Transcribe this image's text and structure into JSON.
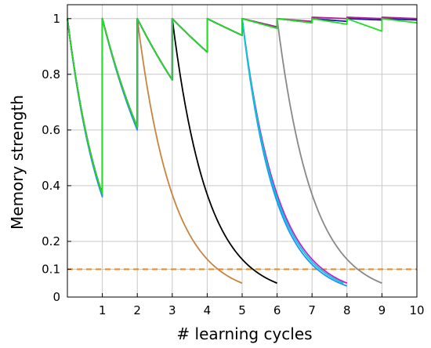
{
  "chart_data": {
    "type": "line",
    "xlabel": "# learning cycles",
    "ylabel": "Memory strength",
    "xlim": [
      0,
      10
    ],
    "ylim": [
      0,
      1.05
    ],
    "x_ticks": [
      1,
      2,
      3,
      4,
      5,
      6,
      7,
      8,
      9,
      10
    ],
    "y_ticks": [
      0,
      0.1,
      0.2,
      0.4,
      0.6,
      0.8,
      1
    ],
    "y_tick_labels": [
      "0",
      "0.1",
      "0.2",
      "0.4",
      "0.6",
      "0.8",
      "1"
    ],
    "grid": true,
    "threshold": {
      "y": 0.1,
      "color": "#e8881f",
      "style": "dashed"
    },
    "series": [
      {
        "color": "#c8843d",
        "points": [
          [
            0,
            1
          ],
          [
            1,
            0.37
          ],
          [
            1,
            1
          ],
          [
            2,
            0.61
          ],
          [
            2,
            1
          ],
          [
            5,
            0.05
          ]
        ]
      },
      {
        "color": "#000000",
        "points": [
          [
            0,
            1
          ],
          [
            1,
            0.37
          ],
          [
            1,
            1
          ],
          [
            2,
            0.61
          ],
          [
            2,
            1
          ],
          [
            3,
            0.78
          ],
          [
            3,
            1
          ],
          [
            6,
            0.05
          ]
        ]
      },
      {
        "color": "#1e90ff",
        "points": [
          [
            0,
            1
          ],
          [
            1,
            0.36
          ],
          [
            1,
            1
          ],
          [
            2,
            0.6
          ],
          [
            2,
            1
          ],
          [
            3,
            0.78
          ],
          [
            3,
            1
          ],
          [
            4,
            0.88
          ],
          [
            4,
            1
          ],
          [
            5,
            0.94
          ],
          [
            5,
            1
          ],
          [
            8,
            0.04
          ]
        ]
      },
      {
        "color": "#c21fd6",
        "points": [
          [
            0,
            1
          ],
          [
            1,
            0.37
          ],
          [
            1,
            1
          ],
          [
            2,
            0.61
          ],
          [
            2,
            1
          ],
          [
            3,
            0.78
          ],
          [
            3,
            1
          ],
          [
            4,
            0.88
          ],
          [
            4,
            1
          ],
          [
            5,
            0.94
          ],
          [
            5,
            1
          ],
          [
            8,
            0.05
          ]
        ]
      },
      {
        "color": "#00cdd1",
        "points": [
          [
            0,
            1
          ],
          [
            1,
            0.37
          ],
          [
            1,
            1
          ],
          [
            2,
            0.61
          ],
          [
            2,
            1
          ],
          [
            3,
            0.78
          ],
          [
            3,
            1
          ],
          [
            4,
            0.88
          ],
          [
            4,
            1
          ],
          [
            5,
            0.94
          ],
          [
            5,
            1
          ],
          [
            7.9,
            0.05
          ]
        ]
      },
      {
        "color": "#888888",
        "points": [
          [
            0,
            1
          ],
          [
            1,
            0.37
          ],
          [
            1,
            1
          ],
          [
            2,
            0.61
          ],
          [
            2,
            1
          ],
          [
            3,
            0.78
          ],
          [
            3,
            1
          ],
          [
            4,
            0.88
          ],
          [
            4,
            1
          ],
          [
            5,
            0.94
          ],
          [
            5,
            1
          ],
          [
            6,
            0.97
          ],
          [
            6,
            1
          ],
          [
            9,
            0.05
          ]
        ]
      },
      {
        "color": "#1a1aa8",
        "points": [
          [
            0,
            1
          ],
          [
            1,
            0.37
          ],
          [
            1,
            1
          ],
          [
            2,
            0.61
          ],
          [
            2,
            1
          ],
          [
            3,
            0.78
          ],
          [
            3,
            1
          ],
          [
            4,
            0.88
          ],
          [
            4,
            1
          ],
          [
            5,
            0.94
          ],
          [
            5,
            1
          ],
          [
            6,
            0.97
          ],
          [
            6,
            1
          ],
          [
            7,
            0.985
          ],
          [
            7,
            1
          ],
          [
            8,
            0.99
          ],
          [
            8,
            1
          ],
          [
            9,
            0.995
          ],
          [
            9,
            1
          ],
          [
            10,
            0.995
          ]
        ]
      },
      {
        "color": "#b0208f",
        "points": [
          [
            0,
            1
          ],
          [
            1,
            0.37
          ],
          [
            1,
            1
          ],
          [
            2,
            0.61
          ],
          [
            2,
            1
          ],
          [
            3,
            0.78
          ],
          [
            3,
            1
          ],
          [
            4,
            0.88
          ],
          [
            4,
            1
          ],
          [
            5,
            0.94
          ],
          [
            5,
            1
          ],
          [
            6,
            0.97
          ],
          [
            6,
            1
          ],
          [
            7,
            0.99
          ],
          [
            7,
            1.005
          ],
          [
            8,
            1
          ],
          [
            8,
            1.005
          ],
          [
            9,
            1
          ],
          [
            9,
            1.005
          ],
          [
            10,
            1.0
          ]
        ]
      },
      {
        "color": "#22dd22",
        "points": [
          [
            0,
            1
          ],
          [
            1,
            0.37
          ],
          [
            1,
            1
          ],
          [
            2,
            0.61
          ],
          [
            2,
            1
          ],
          [
            3,
            0.78
          ],
          [
            3,
            1
          ],
          [
            4,
            0.88
          ],
          [
            4,
            1
          ],
          [
            5,
            0.94
          ],
          [
            5,
            1
          ],
          [
            6,
            0.965
          ],
          [
            6,
            1
          ],
          [
            7,
            0.985
          ],
          [
            7,
            1
          ],
          [
            8,
            0.98
          ],
          [
            8,
            1
          ],
          [
            9,
            0.955
          ],
          [
            9,
            1
          ],
          [
            10,
            0.985
          ]
        ]
      }
    ]
  }
}
